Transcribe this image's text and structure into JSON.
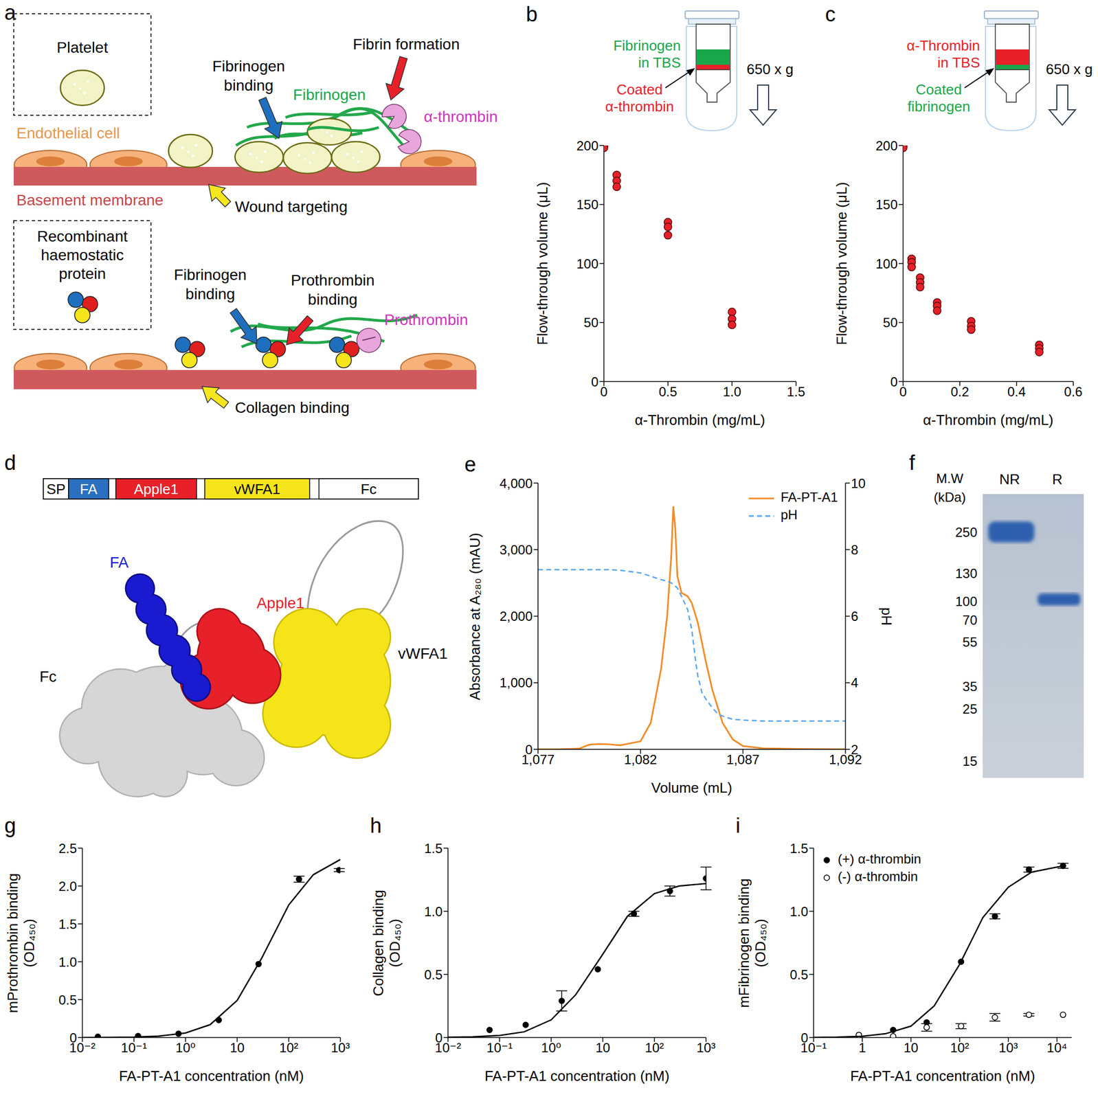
{
  "diagrams": {
    "a": {
      "panel_label": "a",
      "top_box_label": "Platelet",
      "endothelial_label": "Endothelial cell",
      "membrane_label": "Basement membrane",
      "top_labels": {
        "fibrinogen_binding": [
          "Fibrinogen",
          "binding"
        ],
        "fibrin_formation": "Fibrin formation",
        "fibrinogen": "Fibrinogen",
        "thrombin": "α-thrombin",
        "wound_targeting": "Wound targeting"
      },
      "bottom_box_label": [
        "Recombinant",
        "haemostatic",
        "protein"
      ],
      "bottom_labels": {
        "fibrinogen_binding": [
          "Fibrinogen",
          "binding"
        ],
        "prothrombin_binding": [
          "Prothrombin",
          "binding"
        ],
        "prothrombin": "Prothrombin",
        "collagen_binding": "Collagen binding"
      }
    },
    "d": {
      "panel_label": "d",
      "domains": [
        {
          "label": "SP",
          "color": "#ffffff"
        },
        {
          "label": "FA",
          "color": "#2b6fc0"
        },
        {
          "label": "Apple1",
          "color": "#e8202a"
        },
        {
          "label": "vWFA1",
          "color": "#f5e41a"
        },
        {
          "label": "Fc",
          "color": "#ffffff"
        }
      ],
      "structure_labels": [
        {
          "label": "FA",
          "color": "#1a1ad0"
        },
        {
          "label": "Apple1",
          "color": "#e8202a"
        },
        {
          "label": "vWFA1",
          "color": "#000000"
        },
        {
          "label": "Fc",
          "color": "#000000"
        }
      ]
    },
    "f": {
      "panel_label": "f",
      "axis_title": [
        "M.W",
        "(kDa)"
      ],
      "lanes": [
        "NR",
        "R"
      ],
      "markers": [
        250,
        130,
        100,
        70,
        55,
        35,
        25,
        15
      ]
    }
  },
  "chart_data": [
    {
      "panel_label": "b",
      "type": "scatter",
      "x_label": "α-Thrombin (mg/mL)",
      "y_label": "Flow-through volume (μL)",
      "xlim": [
        0,
        1.5
      ],
      "xticks": [
        0,
        0.5,
        {
          "value": 1,
          "label": "1.0"
        },
        1.5
      ],
      "ylim": [
        0,
        200
      ],
      "yticks": [
        0,
        50,
        100,
        150,
        200
      ],
      "series": [
        {
          "x": [
            0,
            0,
            0,
            0.1,
            0.1,
            0.1,
            0.5,
            0.5,
            0.5,
            1,
            1,
            1
          ],
          "values": [
            200,
            199,
            198,
            175,
            170,
            165,
            135,
            131,
            124,
            59,
            53,
            48
          ],
          "color": "#e8202a",
          "marker": "circle"
        }
      ],
      "schematic": {
        "upper_text": [
          "Fibrinogen",
          "in TBS"
        ],
        "upper_color": "#1aa64a",
        "coated_text": [
          "Coated",
          "α-thrombin"
        ],
        "coated_color": "#e8202a",
        "force": "650 x g"
      }
    },
    {
      "panel_label": "c",
      "type": "scatter",
      "x_label": "α-Thrombin (mg/mL)",
      "y_label": "Flow-through volume (μL)",
      "xlim": [
        0,
        0.6
      ],
      "xticks": [
        0,
        0.2,
        0.4,
        0.6
      ],
      "ylim": [
        0,
        200
      ],
      "yticks": [
        0,
        50,
        100,
        150,
        200
      ],
      "series": [
        {
          "x": [
            0,
            0,
            0,
            0.03,
            0.03,
            0.03,
            0.06,
            0.06,
            0.06,
            0.12,
            0.12,
            0.12,
            0.24,
            0.24,
            0.24,
            0.48,
            0.48,
            0.48
          ],
          "values": [
            200,
            199,
            198,
            104,
            101,
            97,
            88,
            84,
            80,
            67,
            64,
            60,
            51,
            47,
            44,
            31,
            28,
            25
          ],
          "color": "#e8202a",
          "marker": "circle"
        }
      ],
      "schematic": {
        "upper_text": [
          "α-Thrombin",
          "in TBS"
        ],
        "upper_color": "#e8202a",
        "coated_text": [
          "Coated",
          "fibrinogen"
        ],
        "coated_color": "#1aa64a",
        "force": "650 x g"
      }
    },
    {
      "panel_label": "e",
      "type": "line",
      "x_label": "Volume (mL)",
      "y_label": "Absorbance at A₂₈₀ (mAU)",
      "y2_label": "pH",
      "xlim": [
        1077,
        1092
      ],
      "xticks": [
        {
          "value": 1077,
          "label": "1,077"
        },
        {
          "value": 1082,
          "label": "1,082"
        },
        {
          "value": 1087,
          "label": "1,087"
        },
        {
          "value": 1092,
          "label": "1,092"
        }
      ],
      "ylim": [
        0,
        4000
      ],
      "yticks": [
        0,
        {
          "value": 1000,
          "label": "1,000"
        },
        {
          "value": 2000,
          "label": "2,000"
        },
        {
          "value": 3000,
          "label": "3,000"
        },
        {
          "value": 4000,
          "label": "4,000"
        }
      ],
      "y2lim": [
        2,
        10
      ],
      "y2ticks": [
        2,
        4,
        6,
        8,
        10
      ],
      "legend": "upper right",
      "x": [
        1077,
        1078,
        1079,
        1079.5,
        1080,
        1080.5,
        1081,
        1082,
        1082.5,
        1083,
        1083.3,
        1083.5,
        1083.6,
        1083.7,
        1083.8,
        1084,
        1084.3,
        1084.5,
        1084.7,
        1084.8,
        1085,
        1085.2,
        1085.5,
        1085.8,
        1086,
        1086.5,
        1087,
        1088,
        1090,
        1092
      ],
      "series": [
        {
          "name": "FA-PT-A1",
          "color": "#f28c28",
          "line_style": "solid",
          "values": [
            0,
            0,
            10,
            70,
            80,
            75,
            60,
            120,
            400,
            1200,
            2000,
            2900,
            3650,
            3300,
            2600,
            2350,
            2300,
            2200,
            2000,
            1900,
            1600,
            1300,
            900,
            600,
            400,
            150,
            50,
            15,
            5,
            0
          ]
        },
        {
          "name": "pH",
          "color": "#5aa7f0",
          "line_style": "dashed",
          "axis": "y2",
          "values": [
            7.4,
            7.4,
            7.4,
            7.4,
            7.4,
            7.4,
            7.38,
            7.3,
            7.2,
            7.1,
            7.05,
            7.0,
            6.95,
            6.9,
            6.85,
            6.6,
            6.2,
            5.6,
            4.6,
            4.2,
            3.7,
            3.5,
            3.25,
            3.05,
            3.0,
            2.9,
            2.88,
            2.85,
            2.85,
            2.85
          ]
        }
      ]
    },
    {
      "panel_label": "g",
      "type": "scatter",
      "log": "x",
      "x_label": "FA-PT-A1 concentration (nM)",
      "y_label": [
        "mProthrombin binding",
        "(OD₄₅₀)"
      ],
      "xlim": [
        0.01,
        1000
      ],
      "xticks": [
        {
          "value": 0.01,
          "label": "10⁻²"
        },
        {
          "value": 0.1,
          "label": "10⁻¹"
        },
        {
          "value": 1,
          "label": "10⁰"
        },
        10,
        {
          "value": 100,
          "label": "10²"
        },
        {
          "value": 1000,
          "label": "10³"
        }
      ],
      "ylim": [
        0,
        2.5
      ],
      "yticks": [
        0,
        0.5,
        {
          "value": 1,
          "label": "1.0"
        },
        1.5,
        {
          "value": 2,
          "label": "2.0"
        },
        2.5
      ],
      "series": [
        {
          "x": [
            0.02,
            0.12,
            0.73,
            4.4,
            26,
            158,
            950
          ],
          "values": [
            0.01,
            0.02,
            0.05,
            0.23,
            0.97,
            2.09,
            2.21
          ],
          "errors": [
            null,
            null,
            null,
            null,
            null,
            0.04,
            0.02
          ],
          "color": "#000000",
          "marker": "circle"
        },
        {
          "type": "line",
          "x": [
            0.01,
            0.03,
            0.1,
            0.3,
            1,
            3,
            10,
            30,
            100,
            300,
            1000
          ],
          "values": [
            0.0006,
            0.002,
            0.006,
            0.018,
            0.06,
            0.17,
            0.49,
            1.05,
            1.75,
            2.15,
            2.35
          ],
          "color": "#000000"
        }
      ]
    },
    {
      "panel_label": "h",
      "type": "scatter",
      "log": "x",
      "x_label": "FA-PT-A1 concentration (nM)",
      "y_label": [
        "Collagen binding",
        "(OD₄₅₀)"
      ],
      "xlim": [
        0.01,
        1000
      ],
      "xticks": [
        {
          "value": 0.01,
          "label": "10⁻²"
        },
        {
          "value": 0.1,
          "label": "10⁻¹"
        },
        {
          "value": 1,
          "label": "10⁰"
        },
        10,
        {
          "value": 100,
          "label": "10²"
        },
        {
          "value": 1000,
          "label": "10³"
        }
      ],
      "ylim": [
        0,
        1.5
      ],
      "yticks": [
        0,
        0.5,
        {
          "value": 1,
          "label": "1.0"
        },
        1.5
      ],
      "series": [
        {
          "x": [
            0.064,
            0.32,
            1.6,
            8,
            40,
            200,
            1000
          ],
          "values": [
            0.06,
            0.1,
            0.29,
            0.54,
            0.98,
            1.16,
            1.26
          ],
          "errors": [
            null,
            null,
            0.08,
            null,
            0.02,
            0.04,
            0.09
          ],
          "color": "#000000",
          "marker": "circle"
        },
        {
          "type": "line",
          "x": [
            0.01,
            0.03,
            0.1,
            0.3,
            1,
            3,
            10,
            30,
            100,
            300,
            1000
          ],
          "values": [
            0.002,
            0.005,
            0.016,
            0.045,
            0.14,
            0.34,
            0.66,
            0.96,
            1.14,
            1.2,
            1.22
          ],
          "color": "#000000"
        }
      ]
    },
    {
      "panel_label": "i",
      "type": "scatter",
      "log": "x",
      "x_label": "FA-PT-A1 concentration (nM)",
      "y_label": [
        "mFibrinogen binding",
        "(OD₄₅₀)"
      ],
      "xlim": [
        0.1,
        20000
      ],
      "xticks": [
        {
          "value": 0.1,
          "label": "10⁻¹"
        },
        1,
        10,
        {
          "value": 100,
          "label": "10²"
        },
        {
          "value": 1000,
          "label": "10³"
        },
        {
          "value": 10000,
          "label": "10⁴"
        }
      ],
      "ylim": [
        0,
        1.5
      ],
      "yticks": [
        0,
        0.5,
        {
          "value": 1,
          "label": "1.0"
        },
        1.5
      ],
      "legend": "upper left",
      "series": [
        {
          "name": "(+) α-thrombin",
          "x": [
            0.85,
            4.3,
            21,
            107,
            530,
            2650,
            13300
          ],
          "values": [
            0.02,
            0.06,
            0.12,
            0.6,
            0.96,
            1.33,
            1.36
          ],
          "errors": [
            null,
            null,
            null,
            null,
            0.02,
            0.02,
            0.02
          ],
          "color": "#000000",
          "marker": "circle"
        },
        {
          "name": "(-) α-thrombin",
          "x": [
            0.85,
            4.3,
            21,
            107,
            530,
            2650,
            13300
          ],
          "values": [
            0.02,
            0.01,
            0.08,
            0.09,
            0.16,
            0.18,
            0.18
          ],
          "errors": [
            null,
            null,
            0.03,
            0.02,
            0.03,
            0.01,
            null
          ],
          "color": "#000000",
          "marker": "open_circle"
        },
        {
          "type": "line",
          "x": [
            0.1,
            0.3,
            1,
            3,
            10,
            30,
            100,
            300,
            1000,
            3000,
            10000,
            15000
          ],
          "values": [
            0.001,
            0.003,
            0.01,
            0.03,
            0.09,
            0.25,
            0.58,
            0.95,
            1.19,
            1.31,
            1.35,
            1.36
          ],
          "color": "#000000"
        }
      ]
    }
  ]
}
